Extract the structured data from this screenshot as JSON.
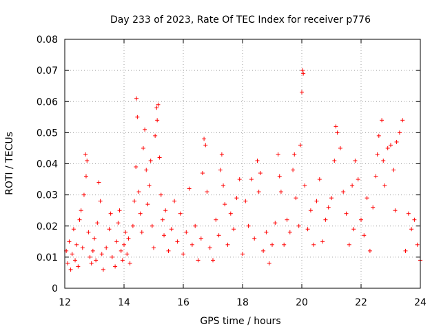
{
  "chart_data": {
    "type": "scatter",
    "title": "Day 233 of 2023, Rate Of TEC Index for receiver p776",
    "xlabel": "GPS time / hours",
    "ylabel": "ROTI / TECUs",
    "xlim": [
      12,
      24
    ],
    "ylim": [
      0,
      0.08
    ],
    "x_ticks": [
      12,
      14,
      16,
      18,
      20,
      22,
      24
    ],
    "x_tick_labels": [
      "12",
      "14",
      "16",
      "18",
      "20",
      "22",
      "24"
    ],
    "y_ticks": [
      0,
      0.01,
      0.02,
      0.03,
      0.04,
      0.05,
      0.06,
      0.07,
      0.08
    ],
    "y_tick_labels": [
      "0",
      "0.01",
      "0.02",
      "0.03",
      "0.04",
      "0.05",
      "0.06",
      "0.07",
      "0.08"
    ],
    "grid": true,
    "marker": "+",
    "marker_color": "#ff0000",
    "series": [
      {
        "name": "ROTI",
        "x": [
          12.05,
          12.1,
          12.15,
          12.2,
          12.25,
          12.3,
          12.35,
          12.4,
          12.45,
          12.5,
          12.55,
          12.6,
          12.65,
          12.7,
          12.72,
          12.75,
          12.8,
          12.85,
          12.9,
          12.95,
          13.0,
          13.05,
          13.1,
          13.15,
          13.2,
          13.25,
          13.3,
          13.4,
          13.5,
          13.55,
          13.6,
          13.7,
          13.75,
          13.8,
          13.85,
          13.9,
          13.95,
          14.0,
          14.05,
          14.1,
          14.15,
          14.2,
          14.3,
          14.35,
          14.4,
          14.42,
          14.45,
          14.5,
          14.55,
          14.6,
          14.65,
          14.7,
          14.75,
          14.8,
          14.85,
          14.9,
          14.95,
          15.0,
          15.05,
          15.1,
          15.12,
          15.15,
          15.2,
          15.25,
          15.3,
          15.35,
          15.4,
          15.5,
          15.6,
          15.7,
          15.8,
          15.9,
          16.0,
          16.1,
          16.2,
          16.3,
          16.4,
          16.5,
          16.6,
          16.65,
          16.7,
          16.75,
          16.8,
          16.9,
          17.0,
          17.1,
          17.2,
          17.25,
          17.3,
          17.35,
          17.4,
          17.5,
          17.6,
          17.7,
          17.8,
          17.9,
          18.0,
          18.1,
          18.2,
          18.3,
          18.4,
          18.5,
          18.55,
          18.6,
          18.7,
          18.8,
          18.9,
          19.0,
          19.1,
          19.2,
          19.25,
          19.3,
          19.4,
          19.5,
          19.6,
          19.7,
          19.75,
          19.8,
          19.9,
          19.95,
          20.0,
          20.02,
          20.05,
          20.1,
          20.2,
          20.3,
          20.4,
          20.5,
          20.6,
          20.7,
          20.8,
          20.9,
          21.0,
          21.1,
          21.15,
          21.2,
          21.3,
          21.4,
          21.5,
          21.6,
          21.7,
          21.75,
          21.8,
          21.9,
          22.0,
          22.1,
          22.2,
          22.3,
          22.4,
          22.5,
          22.55,
          22.6,
          22.7,
          22.75,
          22.8,
          22.9,
          23.0,
          23.1,
          23.15,
          23.2,
          23.3,
          23.4,
          23.5,
          23.6,
          23.7,
          23.8,
          23.9,
          24.0
        ],
        "y": [
          0.012,
          0.008,
          0.015,
          0.006,
          0.011,
          0.019,
          0.009,
          0.014,
          0.007,
          0.022,
          0.025,
          0.013,
          0.03,
          0.043,
          0.036,
          0.041,
          0.018,
          0.01,
          0.008,
          0.012,
          0.016,
          0.009,
          0.021,
          0.034,
          0.028,
          0.011,
          0.006,
          0.013,
          0.019,
          0.024,
          0.01,
          0.007,
          0.015,
          0.021,
          0.025,
          0.012,
          0.009,
          0.014,
          0.018,
          0.011,
          0.016,
          0.008,
          0.02,
          0.028,
          0.039,
          0.061,
          0.055,
          0.031,
          0.024,
          0.018,
          0.045,
          0.051,
          0.038,
          0.027,
          0.033,
          0.041,
          0.02,
          0.013,
          0.049,
          0.058,
          0.054,
          0.059,
          0.042,
          0.03,
          0.022,
          0.017,
          0.025,
          0.012,
          0.019,
          0.028,
          0.015,
          0.024,
          0.011,
          0.018,
          0.032,
          0.014,
          0.02,
          0.009,
          0.016,
          0.037,
          0.048,
          0.046,
          0.031,
          0.013,
          0.009,
          0.022,
          0.017,
          0.038,
          0.043,
          0.033,
          0.027,
          0.014,
          0.024,
          0.019,
          0.029,
          0.035,
          0.011,
          0.028,
          0.02,
          0.035,
          0.016,
          0.041,
          0.031,
          0.037,
          0.012,
          0.018,
          0.008,
          0.014,
          0.021,
          0.043,
          0.036,
          0.031,
          0.014,
          0.022,
          0.018,
          0.038,
          0.043,
          0.029,
          0.02,
          0.046,
          0.063,
          0.07,
          0.069,
          0.033,
          0.019,
          0.025,
          0.014,
          0.028,
          0.035,
          0.015,
          0.022,
          0.026,
          0.029,
          0.041,
          0.052,
          0.05,
          0.045,
          0.031,
          0.024,
          0.014,
          0.033,
          0.019,
          0.041,
          0.035,
          0.022,
          0.017,
          0.029,
          0.012,
          0.026,
          0.036,
          0.043,
          0.049,
          0.054,
          0.041,
          0.033,
          0.045,
          0.046,
          0.038,
          0.025,
          0.047,
          0.05,
          0.054,
          0.012,
          0.024,
          0.019,
          0.022,
          0.014,
          0.009
        ]
      }
    ]
  }
}
